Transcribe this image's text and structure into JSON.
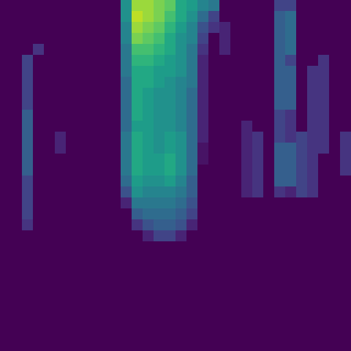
{
  "chart_data": {
    "type": "heatmap",
    "color": "viridis",
    "tick_labels": false,
    "zlim": [
      0,
      1
    ],
    "z": [
      [
        0,
        0,
        0,
        0,
        0,
        0,
        0,
        0,
        0,
        0,
        0,
        0.5,
        0.85,
        0.85,
        0.8,
        0.75,
        0.6,
        0.55,
        0.45,
        0.4,
        0,
        0,
        0,
        0,
        0,
        0.2,
        0.2,
        0,
        0,
        0,
        0,
        0
      ],
      [
        0,
        0,
        0,
        0,
        0,
        0,
        0,
        0,
        0,
        0,
        0,
        0.5,
        0.9,
        0.85,
        0.8,
        0.7,
        0.6,
        0.5,
        0.35,
        0.2,
        0,
        0,
        0,
        0,
        0,
        0.3,
        0.35,
        0,
        0,
        0,
        0,
        0
      ],
      [
        0,
        0,
        0,
        0,
        0,
        0,
        0,
        0,
        0,
        0,
        0,
        0.45,
        0.85,
        0.8,
        0.75,
        0.65,
        0.55,
        0.45,
        0.25,
        0.15,
        0.1,
        0,
        0,
        0,
        0,
        0.3,
        0.35,
        0,
        0,
        0,
        0,
        0
      ],
      [
        0,
        0,
        0,
        0,
        0,
        0,
        0,
        0,
        0,
        0,
        0,
        0.45,
        0.8,
        0.75,
        0.7,
        0.6,
        0.5,
        0.45,
        0.2,
        0,
        0.1,
        0,
        0,
        0,
        0,
        0.3,
        0.35,
        0,
        0,
        0,
        0,
        0
      ],
      [
        0,
        0,
        0,
        0.15,
        0,
        0,
        0,
        0,
        0,
        0,
        0,
        0.4,
        0.7,
        0.7,
        0.65,
        0.6,
        0.5,
        0.4,
        0.15,
        0,
        0.1,
        0,
        0,
        0,
        0,
        0.3,
        0.35,
        0,
        0,
        0,
        0,
        0
      ],
      [
        0,
        0,
        0.2,
        0,
        0,
        0,
        0,
        0,
        0,
        0,
        0,
        0.4,
        0.65,
        0.65,
        0.6,
        0.55,
        0.5,
        0.4,
        0.1,
        0,
        0,
        0,
        0,
        0,
        0,
        0.3,
        0.2,
        0,
        0,
        0.15,
        0,
        0
      ],
      [
        0,
        0,
        0.2,
        0,
        0,
        0,
        0,
        0,
        0,
        0,
        0,
        0.4,
        0.6,
        0.6,
        0.55,
        0.55,
        0.5,
        0.4,
        0.1,
        0,
        0,
        0,
        0,
        0,
        0,
        0.3,
        0.3,
        0,
        0.15,
        0.15,
        0,
        0
      ],
      [
        0,
        0,
        0.2,
        0,
        0,
        0,
        0,
        0,
        0,
        0,
        0,
        0.35,
        0.6,
        0.6,
        0.55,
        0.5,
        0.45,
        0.4,
        0.1,
        0,
        0,
        0,
        0,
        0,
        0,
        0.3,
        0.3,
        0,
        0.15,
        0.15,
        0,
        0
      ],
      [
        0,
        0,
        0.2,
        0,
        0,
        0,
        0,
        0,
        0,
        0,
        0,
        0.35,
        0.6,
        0.55,
        0.5,
        0.5,
        0.45,
        0.35,
        0.1,
        0,
        0,
        0,
        0,
        0,
        0,
        0.3,
        0.3,
        0,
        0.15,
        0.15,
        0,
        0
      ],
      [
        0,
        0,
        0.2,
        0,
        0,
        0,
        0,
        0,
        0,
        0,
        0,
        0.35,
        0.6,
        0.55,
        0.5,
        0.5,
        0.45,
        0.35,
        0.1,
        0,
        0,
        0,
        0,
        0,
        0,
        0.3,
        0.3,
        0,
        0.15,
        0.15,
        0,
        0
      ],
      [
        0,
        0,
        0.3,
        0,
        0,
        0,
        0,
        0,
        0,
        0,
        0,
        0.35,
        0.6,
        0.55,
        0.5,
        0.5,
        0.45,
        0.35,
        0.1,
        0,
        0,
        0,
        0,
        0,
        0,
        0.2,
        0.15,
        0,
        0.15,
        0.15,
        0,
        0
      ],
      [
        0,
        0,
        0.3,
        0,
        0,
        0,
        0,
        0,
        0,
        0,
        0,
        0.35,
        0.55,
        0.55,
        0.5,
        0.5,
        0.45,
        0.35,
        0.1,
        0,
        0,
        0,
        0.1,
        0,
        0,
        0.2,
        0.15,
        0,
        0.15,
        0.15,
        0,
        0
      ],
      [
        0,
        0,
        0.3,
        0,
        0,
        0.1,
        0,
        0,
        0,
        0,
        0,
        0.4,
        0.6,
        0.55,
        0.5,
        0.55,
        0.5,
        0.35,
        0.1,
        0,
        0,
        0,
        0.1,
        0.15,
        0,
        0.2,
        0.15,
        0.2,
        0.15,
        0.15,
        0,
        0.15
      ],
      [
        0,
        0,
        0.3,
        0,
        0,
        0.1,
        0,
        0,
        0,
        0,
        0,
        0.4,
        0.6,
        0.55,
        0.5,
        0.55,
        0.5,
        0.35,
        0.05,
        0,
        0,
        0,
        0.1,
        0.15,
        0,
        0.3,
        0.3,
        0.2,
        0.15,
        0.15,
        0,
        0.15
      ],
      [
        0,
        0,
        0.3,
        0,
        0,
        0,
        0,
        0,
        0,
        0,
        0,
        0.4,
        0.6,
        0.55,
        0.55,
        0.6,
        0.5,
        0.35,
        0.05,
        0,
        0,
        0,
        0.1,
        0.15,
        0,
        0.3,
        0.3,
        0.2,
        0.15,
        0,
        0,
        0.15
      ],
      [
        0,
        0,
        0.3,
        0,
        0,
        0,
        0,
        0,
        0,
        0,
        0,
        0.4,
        0.6,
        0.55,
        0.55,
        0.6,
        0.5,
        0.35,
        0,
        0,
        0,
        0,
        0.1,
        0.15,
        0,
        0.3,
        0.3,
        0.2,
        0.15,
        0,
        0,
        0.15
      ],
      [
        0,
        0,
        0.2,
        0,
        0,
        0,
        0,
        0,
        0,
        0,
        0,
        0.35,
        0.55,
        0.5,
        0.5,
        0.55,
        0.45,
        0.3,
        0,
        0,
        0,
        0,
        0.1,
        0.15,
        0,
        0.3,
        0.3,
        0.2,
        0.15,
        0,
        0,
        0
      ],
      [
        0,
        0,
        0.2,
        0,
        0,
        0,
        0,
        0,
        0,
        0,
        0,
        0.25,
        0.5,
        0.45,
        0.45,
        0.45,
        0.4,
        0.3,
        0,
        0,
        0,
        0,
        0.1,
        0.15,
        0,
        0.15,
        0.1,
        0.2,
        0.15,
        0,
        0,
        0
      ],
      [
        0,
        0,
        0.2,
        0,
        0,
        0,
        0,
        0,
        0,
        0,
        0,
        0.1,
        0.4,
        0.4,
        0.4,
        0.4,
        0.35,
        0.25,
        0,
        0,
        0,
        0,
        0,
        0,
        0,
        0,
        0,
        0,
        0,
        0,
        0,
        0
      ],
      [
        0,
        0,
        0.2,
        0,
        0,
        0,
        0,
        0,
        0,
        0,
        0,
        0,
        0.3,
        0.35,
        0.35,
        0.35,
        0.3,
        0.2,
        0,
        0,
        0,
        0,
        0,
        0,
        0,
        0,
        0,
        0,
        0,
        0,
        0,
        0
      ],
      [
        0,
        0,
        0.15,
        0,
        0,
        0,
        0,
        0,
        0,
        0,
        0,
        0,
        0.15,
        0.25,
        0.3,
        0.3,
        0.25,
        0.1,
        0,
        0,
        0,
        0,
        0,
        0,
        0,
        0,
        0,
        0,
        0,
        0,
        0,
        0
      ],
      [
        0,
        0,
        0,
        0,
        0,
        0,
        0,
        0,
        0,
        0,
        0,
        0,
        0,
        0.1,
        0.2,
        0.2,
        0.1,
        0,
        0,
        0,
        0,
        0,
        0,
        0,
        0,
        0,
        0,
        0,
        0,
        0,
        0,
        0
      ],
      [
        0,
        0,
        0,
        0,
        0,
        0,
        0,
        0,
        0,
        0,
        0,
        0,
        0,
        0,
        0,
        0,
        0,
        0,
        0,
        0,
        0,
        0,
        0,
        0,
        0,
        0,
        0,
        0,
        0,
        0,
        0,
        0
      ],
      [
        0,
        0,
        0,
        0,
        0,
        0,
        0,
        0,
        0,
        0,
        0,
        0,
        0,
        0,
        0,
        0,
        0,
        0,
        0,
        0,
        0,
        0,
        0,
        0,
        0,
        0,
        0,
        0,
        0,
        0,
        0,
        0
      ],
      [
        0,
        0,
        0,
        0,
        0,
        0,
        0,
        0,
        0,
        0,
        0,
        0,
        0,
        0,
        0,
        0,
        0,
        0,
        0,
        0,
        0,
        0,
        0,
        0,
        0,
        0,
        0,
        0,
        0,
        0,
        0,
        0
      ],
      [
        0,
        0,
        0,
        0,
        0,
        0,
        0,
        0,
        0,
        0,
        0,
        0,
        0,
        0,
        0,
        0,
        0,
        0,
        0,
        0,
        0,
        0,
        0,
        0,
        0,
        0,
        0,
        0,
        0,
        0,
        0,
        0
      ],
      [
        0,
        0,
        0,
        0,
        0,
        0,
        0,
        0,
        0,
        0,
        0,
        0,
        0,
        0,
        0,
        0,
        0,
        0,
        0,
        0,
        0,
        0,
        0,
        0,
        0,
        0,
        0,
        0,
        0,
        0,
        0,
        0
      ],
      [
        0,
        0,
        0,
        0,
        0,
        0,
        0,
        0,
        0,
        0,
        0,
        0,
        0,
        0,
        0,
        0,
        0,
        0,
        0,
        0,
        0,
        0,
        0,
        0,
        0,
        0,
        0,
        0,
        0,
        0,
        0,
        0
      ],
      [
        0,
        0,
        0,
        0,
        0,
        0,
        0,
        0,
        0,
        0,
        0,
        0,
        0,
        0,
        0,
        0,
        0,
        0,
        0,
        0,
        0,
        0,
        0,
        0,
        0,
        0,
        0,
        0,
        0,
        0,
        0,
        0
      ],
      [
        0,
        0,
        0,
        0,
        0,
        0,
        0,
        0,
        0,
        0,
        0,
        0,
        0,
        0,
        0,
        0,
        0,
        0,
        0,
        0,
        0,
        0,
        0,
        0,
        0,
        0,
        0,
        0,
        0,
        0,
        0,
        0
      ],
      [
        0,
        0,
        0,
        0,
        0,
        0,
        0,
        0,
        0,
        0,
        0,
        0,
        0,
        0,
        0,
        0,
        0,
        0,
        0,
        0,
        0,
        0,
        0,
        0,
        0,
        0,
        0,
        0,
        0,
        0,
        0,
        0
      ],
      [
        0,
        0,
        0,
        0,
        0,
        0,
        0,
        0,
        0,
        0,
        0,
        0,
        0,
        0,
        0,
        0,
        0,
        0,
        0,
        0,
        0,
        0,
        0,
        0,
        0,
        0,
        0,
        0,
        0,
        0,
        0,
        0
      ]
    ]
  }
}
